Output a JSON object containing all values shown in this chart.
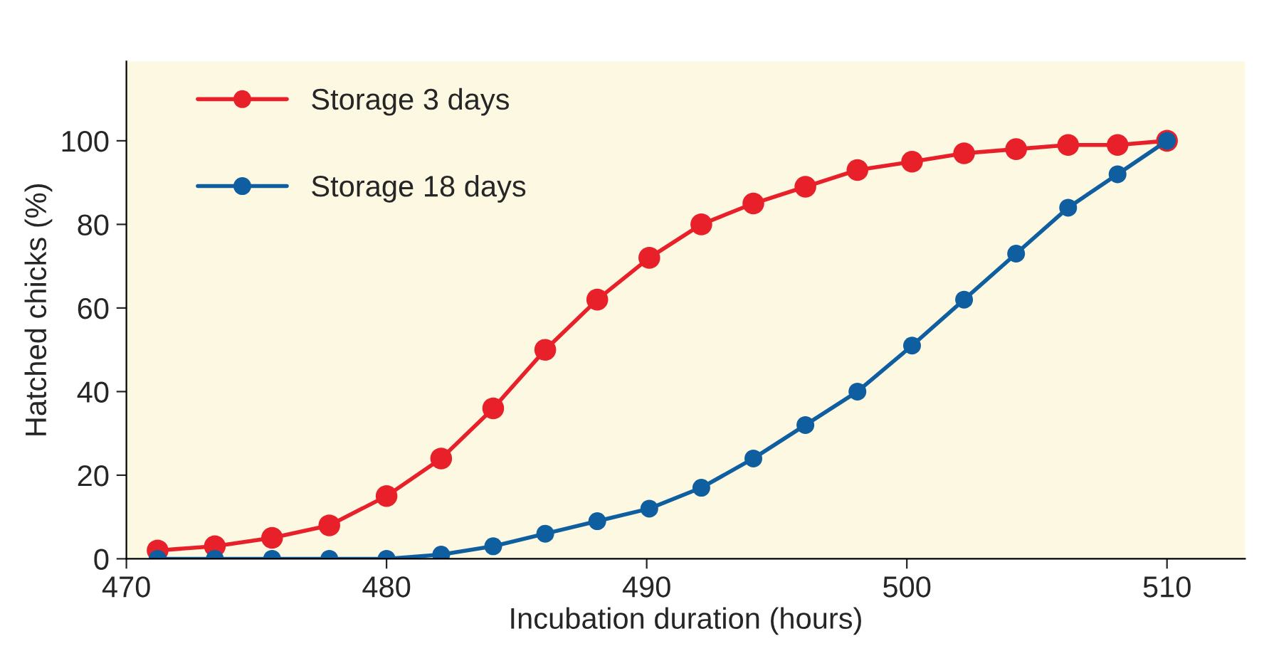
{
  "chart_data": {
    "type": "line",
    "xlabel": "Incubation duration (hours)",
    "ylabel": "Hatched chicks (%)",
    "x": [
      471.2,
      473.4,
      475.6,
      477.8,
      480.0,
      482.1,
      484.1,
      486.1,
      488.1,
      490.1,
      492.1,
      494.1,
      496.1,
      498.1,
      500.2,
      502.2,
      504.2,
      506.2,
      508.1,
      510.0
    ],
    "series": [
      {
        "name": "Storage 3 days",
        "color": "#e8202a",
        "values": [
          2,
          3,
          5,
          8,
          15,
          24,
          36,
          50,
          62,
          72,
          80,
          85,
          89,
          93,
          95,
          97,
          98,
          99,
          99,
          100
        ]
      },
      {
        "name": "Storage 18 days",
        "color": "#0f5fa0",
        "values": [
          0,
          0,
          0,
          0,
          0,
          1,
          3,
          6,
          9,
          12,
          17,
          24,
          32,
          40,
          51,
          62,
          73,
          84,
          92,
          100
        ]
      }
    ],
    "xlim": [
      470,
      513
    ],
    "ylim": [
      0,
      119
    ],
    "xticks": [
      470,
      480,
      490,
      500,
      510
    ],
    "yticks": [
      0,
      20,
      40,
      60,
      80,
      100
    ],
    "grid": false,
    "legend": "top left",
    "marker": "circle",
    "line_style": "solid"
  }
}
